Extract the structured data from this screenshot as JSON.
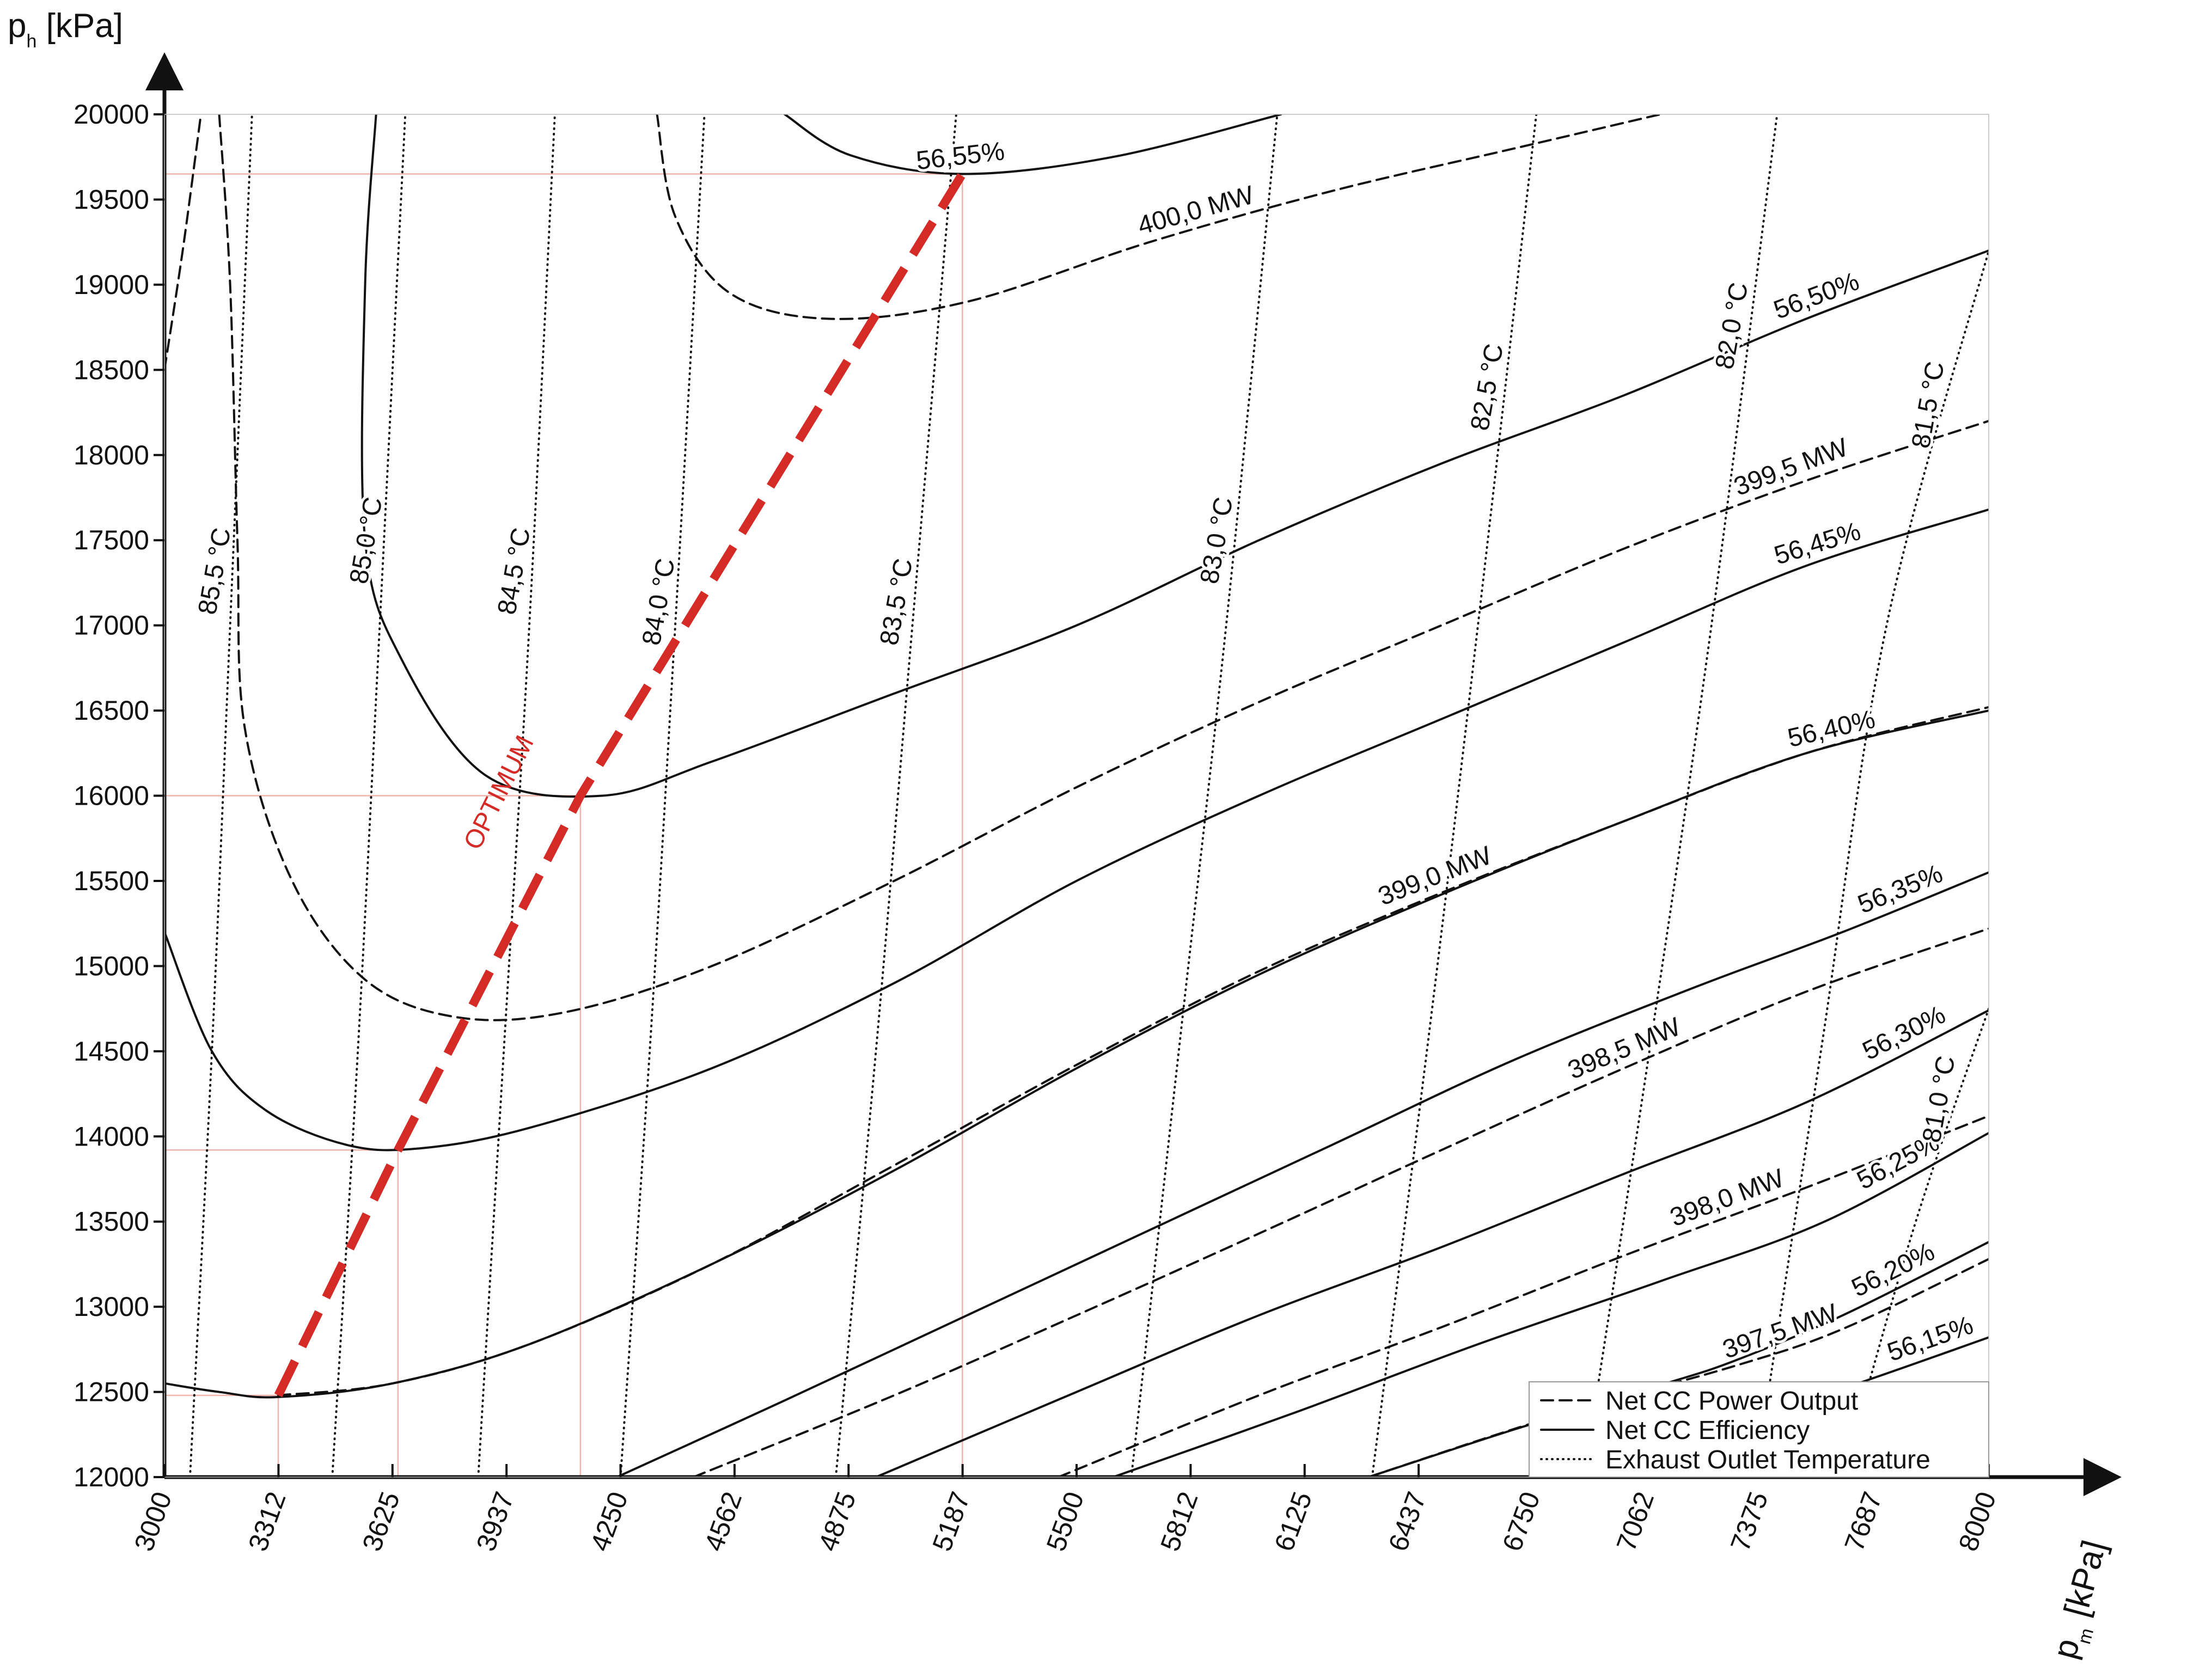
{
  "chart_data": {
    "type": "line",
    "title": "",
    "xlabel": "pm [kPa]",
    "ylabel": "ph [kPa]",
    "axis_titles": {
      "x_main": "p",
      "x_sub": "m",
      "x_unit": " [kPa]",
      "y_main": "p",
      "y_sub": "h",
      "y_unit": " [kPa]"
    },
    "xlim": [
      3000,
      8000
    ],
    "ylim": [
      12000,
      20000
    ],
    "x_tick_values": [
      3000,
      3312.5,
      3625,
      3937.5,
      4250,
      4562.5,
      4875,
      5187.5,
      5500,
      5812.5,
      6125,
      6437.5,
      6750,
      7062.5,
      7375,
      7687.5,
      8000
    ],
    "x_tick_labels": [
      "3000",
      "3312",
      "3625",
      "3937",
      "4250",
      "4562",
      "4875",
      "5187",
      "5500",
      "5812",
      "6125",
      "6437",
      "6750",
      "7062",
      "7375",
      "7687",
      "8000"
    ],
    "y_tick_values": [
      12000,
      12500,
      13000,
      13500,
      14000,
      14500,
      15000,
      15500,
      16000,
      16500,
      17000,
      17500,
      18000,
      18500,
      19000,
      19500,
      20000
    ],
    "y_tick_labels": [
      "12000",
      "12500",
      "13000",
      "13500",
      "14000",
      "14500",
      "15000",
      "15500",
      "16000",
      "16500",
      "17000",
      "17500",
      "18000",
      "18500",
      "19000",
      "19500",
      "20000"
    ],
    "grid": false,
    "legend_position": "bottom-right",
    "legend": [
      {
        "label": "Net CC Power Output",
        "style": "dashed"
      },
      {
        "label": "Net CC Efficiency",
        "style": "solid"
      },
      {
        "label": "Exhaust Outlet Temperature",
        "style": "dotted"
      }
    ],
    "colors": {
      "contour": "#111111",
      "optimum": "#d42b27",
      "reference": "#f0b4ae"
    },
    "efficiency_contours": [
      {
        "label": "56,55%",
        "points": [
          [
            4700,
            20000
          ],
          [
            4880,
            19760
          ],
          [
            5187,
            19650
          ],
          [
            5600,
            19750
          ],
          [
            6060,
            20000
          ]
        ]
      },
      {
        "label": "56,50%",
        "points": [
          [
            3580,
            20000
          ],
          [
            3550,
            19000
          ],
          [
            3550,
            17500
          ],
          [
            3650,
            16800
          ],
          [
            3880,
            16120
          ],
          [
            4200,
            16000
          ],
          [
            4500,
            16200
          ],
          [
            5000,
            16600
          ],
          [
            5500,
            17000
          ],
          [
            6000,
            17500
          ],
          [
            6500,
            17950
          ],
          [
            7000,
            18350
          ],
          [
            7500,
            18800
          ],
          [
            8000,
            19200
          ]
        ]
      },
      {
        "label": "56,45%",
        "points": [
          [
            3000,
            15200
          ],
          [
            3130,
            14500
          ],
          [
            3280,
            14150
          ],
          [
            3500,
            13950
          ],
          [
            3700,
            13930
          ],
          [
            4000,
            14050
          ],
          [
            4500,
            14400
          ],
          [
            5000,
            14900
          ],
          [
            5500,
            15500
          ],
          [
            6000,
            16000
          ],
          [
            6500,
            16450
          ],
          [
            7000,
            16900
          ],
          [
            7500,
            17350
          ],
          [
            8000,
            17680
          ]
        ]
      },
      {
        "label": "56,40%",
        "points": [
          [
            3000,
            12550
          ],
          [
            3150,
            12500
          ],
          [
            3312,
            12470
          ],
          [
            3625,
            12550
          ],
          [
            4000,
            12780
          ],
          [
            4500,
            13250
          ],
          [
            5000,
            13800
          ],
          [
            5500,
            14400
          ],
          [
            6000,
            14950
          ],
          [
            6500,
            15420
          ],
          [
            7000,
            15850
          ],
          [
            7500,
            16250
          ],
          [
            8000,
            16500
          ]
        ]
      },
      {
        "label": "56,35%",
        "points": [
          [
            4240,
            12000
          ],
          [
            4700,
            12450
          ],
          [
            5200,
            12950
          ],
          [
            5700,
            13450
          ],
          [
            6200,
            13950
          ],
          [
            6700,
            14450
          ],
          [
            7200,
            14880
          ],
          [
            7600,
            15200
          ],
          [
            8000,
            15550
          ]
        ]
      },
      {
        "label": "56,30%",
        "points": [
          [
            4950,
            12000
          ],
          [
            5500,
            12500
          ],
          [
            6000,
            12950
          ],
          [
            6500,
            13350
          ],
          [
            7000,
            13780
          ],
          [
            7500,
            14200
          ],
          [
            8000,
            14740
          ]
        ]
      },
      {
        "label": "56,25%",
        "points": [
          [
            5600,
            12000
          ],
          [
            6100,
            12380
          ],
          [
            6600,
            12780
          ],
          [
            7100,
            13150
          ],
          [
            7550,
            13500
          ],
          [
            8000,
            14020
          ]
        ]
      },
      {
        "label": "56,20%",
        "points": [
          [
            6300,
            12000
          ],
          [
            6700,
            12280
          ],
          [
            7100,
            12540
          ],
          [
            7300,
            12680
          ],
          [
            7600,
            12950
          ],
          [
            8000,
            13380
          ]
        ]
      },
      {
        "label": "56,15%",
        "points": [
          [
            6800,
            12000
          ],
          [
            7200,
            12250
          ],
          [
            7600,
            12520
          ],
          [
            8000,
            12820
          ]
        ]
      }
    ],
    "power_contours": [
      {
        "label": "400,0 MW",
        "points": [
          [
            4350,
            20000
          ],
          [
            4400,
            19400
          ],
          [
            4550,
            18950
          ],
          [
            4820,
            18800
          ],
          [
            5200,
            18900
          ],
          [
            5700,
            19250
          ],
          [
            6200,
            19550
          ],
          [
            6700,
            19800
          ],
          [
            7100,
            20000
          ]
        ]
      },
      {
        "label": "399,5 MW",
        "points": [
          [
            3150,
            20000
          ],
          [
            3180,
            19000
          ],
          [
            3200,
            17500
          ],
          [
            3220,
            16400
          ],
          [
            3350,
            15500
          ],
          [
            3550,
            14920
          ],
          [
            3800,
            14700
          ],
          [
            4100,
            14730
          ],
          [
            4500,
            15000
          ],
          [
            5000,
            15500
          ],
          [
            5500,
            16050
          ],
          [
            6000,
            16550
          ],
          [
            6500,
            17000
          ],
          [
            7000,
            17450
          ],
          [
            7500,
            17850
          ],
          [
            8000,
            18200
          ]
        ]
      },
      {
        "label": "399,0 MW",
        "points": [
          [
            3000,
            18500
          ],
          [
            3050,
            19200
          ],
          [
            3100,
            20000
          ]
        ]
      },
      {
        "label": "399,0 MW",
        "points": [
          [
            3312,
            12480
          ],
          [
            3625,
            12550
          ],
          [
            4000,
            12780
          ],
          [
            4500,
            13250
          ],
          [
            5000,
            13830
          ],
          [
            5500,
            14420
          ],
          [
            6000,
            14970
          ],
          [
            6500,
            15430
          ],
          [
            7000,
            15850
          ],
          [
            7500,
            16250
          ],
          [
            8000,
            16520
          ]
        ]
      },
      {
        "label": "398,5 MW",
        "points": [
          [
            4450,
            12000
          ],
          [
            5000,
            12480
          ],
          [
            5500,
            12950
          ],
          [
            6000,
            13430
          ],
          [
            6500,
            13920
          ],
          [
            7000,
            14400
          ],
          [
            7500,
            14850
          ],
          [
            8000,
            15220
          ]
        ]
      },
      {
        "label": "398,0 MW",
        "points": [
          [
            5450,
            12000
          ],
          [
            6000,
            12480
          ],
          [
            6500,
            12880
          ],
          [
            7000,
            13300
          ],
          [
            7500,
            13700
          ],
          [
            8000,
            14120
          ]
        ]
      },
      {
        "label": "397,5 MW",
        "points": [
          [
            6300,
            12000
          ],
          [
            6800,
            12350
          ],
          [
            7300,
            12650
          ],
          [
            7600,
            12870
          ],
          [
            8000,
            13280
          ]
        ]
      }
    ],
    "temperature_contours": [
      {
        "label": "85,5 °C",
        "points": [
          [
            3070,
            12000
          ],
          [
            3130,
            14500
          ],
          [
            3180,
            17000
          ],
          [
            3240,
            20000
          ]
        ]
      },
      {
        "label": "85,0 °C",
        "points": [
          [
            3460,
            12000
          ],
          [
            3530,
            14500
          ],
          [
            3590,
            17000
          ],
          [
            3660,
            20000
          ]
        ]
      },
      {
        "label": "84,5 °C",
        "points": [
          [
            3860,
            12000
          ],
          [
            3930,
            14500
          ],
          [
            4000,
            17000
          ],
          [
            4070,
            20000
          ]
        ]
      },
      {
        "label": "84,0 °C",
        "points": [
          [
            4250,
            12000
          ],
          [
            4330,
            14500
          ],
          [
            4400,
            17000
          ],
          [
            4480,
            20000
          ]
        ]
      },
      {
        "label": "83,5 °C",
        "points": [
          [
            4840,
            12000
          ],
          [
            4950,
            14500
          ],
          [
            5050,
            17000
          ],
          [
            5170,
            20000
          ]
        ]
      },
      {
        "label": "83,0 °C",
        "points": [
          [
            5650,
            12000
          ],
          [
            5780,
            14500
          ],
          [
            5910,
            17000
          ],
          [
            6050,
            20000
          ]
        ]
      },
      {
        "label": "82,5 °C",
        "points": [
          [
            6310,
            12000
          ],
          [
            6460,
            14500
          ],
          [
            6600,
            17000
          ],
          [
            6760,
            20000
          ]
        ]
      },
      {
        "label": "82,0 °C",
        "points": [
          [
            6890,
            12000
          ],
          [
            7070,
            14500
          ],
          [
            7240,
            17000
          ],
          [
            7420,
            20000
          ]
        ]
      },
      {
        "label": "81,5 °C",
        "points": [
          [
            7360,
            12000
          ],
          [
            7540,
            14500
          ],
          [
            7720,
            17000
          ],
          [
            8000,
            19200
          ]
        ]
      },
      {
        "label": "81,0 °C",
        "points": [
          [
            7600,
            12000
          ],
          [
            7800,
            13500
          ],
          [
            8000,
            14750
          ]
        ]
      }
    ],
    "optimum": {
      "label": "OPTIMUM",
      "points": [
        [
          3312,
          12480
        ],
        [
          3640,
          13920
        ],
        [
          4140,
          16000
        ],
        [
          5187,
          19650
        ]
      ]
    },
    "reference_points": [
      [
        3312,
        12480
      ],
      [
        3640,
        13920
      ],
      [
        4140,
        16000
      ],
      [
        5187,
        19650
      ]
    ]
  }
}
